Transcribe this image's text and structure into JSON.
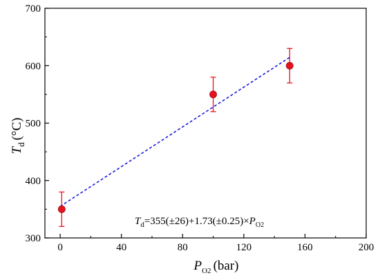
{
  "chart_data": {
    "type": "scatter",
    "xlabel": {
      "var": "P",
      "sub": "O2",
      "unit": "(bar)"
    },
    "ylabel": {
      "var": "T",
      "sub": "d",
      "unit": "(°C)"
    },
    "xlim": [
      -10,
      200
    ],
    "ylim": [
      300,
      700
    ],
    "xticks": [
      0,
      40,
      80,
      120,
      160,
      200
    ],
    "yticks": [
      300,
      400,
      500,
      600,
      700
    ],
    "grid": false,
    "series": [
      {
        "type": "scatter",
        "color": "#e8121e",
        "points": [
          {
            "x": 1,
            "y": 350,
            "err": 30
          },
          {
            "x": 100,
            "y": 550,
            "err": 30
          },
          {
            "x": 150,
            "y": 600,
            "err": 30
          }
        ]
      },
      {
        "type": "line",
        "style": "dashed",
        "color": "#1a1adb",
        "x": [
          0,
          150
        ],
        "y": [
          355,
          614.5
        ]
      }
    ],
    "annotation": {
      "var": "T",
      "var_sub": "d",
      "text": "=355(±26)+1.73(±0.25)×",
      "tail_var": "P",
      "tail_sub": "O2"
    }
  }
}
